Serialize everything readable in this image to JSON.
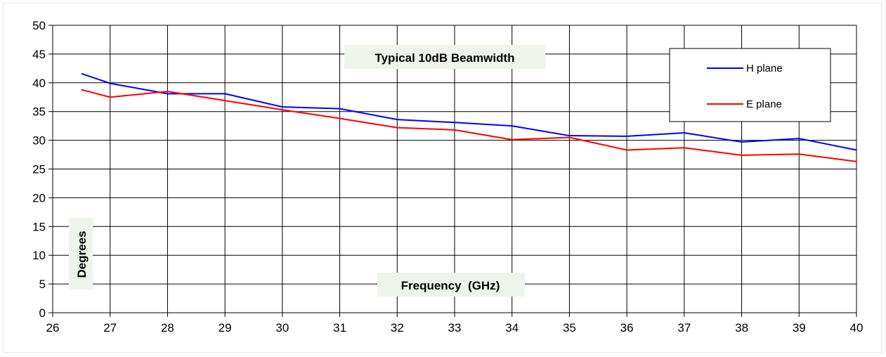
{
  "chart_data": {
    "type": "line",
    "title": "Typical 10dB Beamwidth",
    "xlabel": "Frequency  (GHz)",
    "ylabel": "Degrees",
    "xlim": [
      26,
      40
    ],
    "ylim": [
      0,
      50
    ],
    "x_ticks": [
      26,
      27,
      28,
      29,
      30,
      31,
      32,
      33,
      34,
      35,
      36,
      37,
      38,
      39,
      40
    ],
    "y_ticks": [
      0,
      5,
      10,
      15,
      20,
      25,
      30,
      35,
      40,
      45,
      50
    ],
    "grid": true,
    "legend_position": "top-right",
    "series": [
      {
        "name": "H plane",
        "color": "#0000ff",
        "x": [
          26.5,
          27,
          28,
          29,
          30,
          31,
          32,
          33,
          34,
          35,
          36,
          37,
          38,
          39,
          40
        ],
        "y": [
          41.6,
          39.9,
          38.1,
          38.1,
          35.8,
          35.5,
          33.6,
          33.1,
          32.5,
          30.8,
          30.7,
          31.3,
          29.7,
          30.3,
          28.3
        ]
      },
      {
        "name": "E plane",
        "color": "#ff0000",
        "x": [
          26.5,
          27,
          28,
          29,
          30,
          31,
          32,
          33,
          34,
          35,
          36,
          37,
          38,
          39,
          40
        ],
        "y": [
          38.8,
          37.5,
          38.5,
          36.9,
          35.3,
          33.8,
          32.2,
          31.8,
          30.1,
          30.5,
          28.3,
          28.7,
          27.4,
          27.6,
          26.3
        ]
      }
    ]
  }
}
